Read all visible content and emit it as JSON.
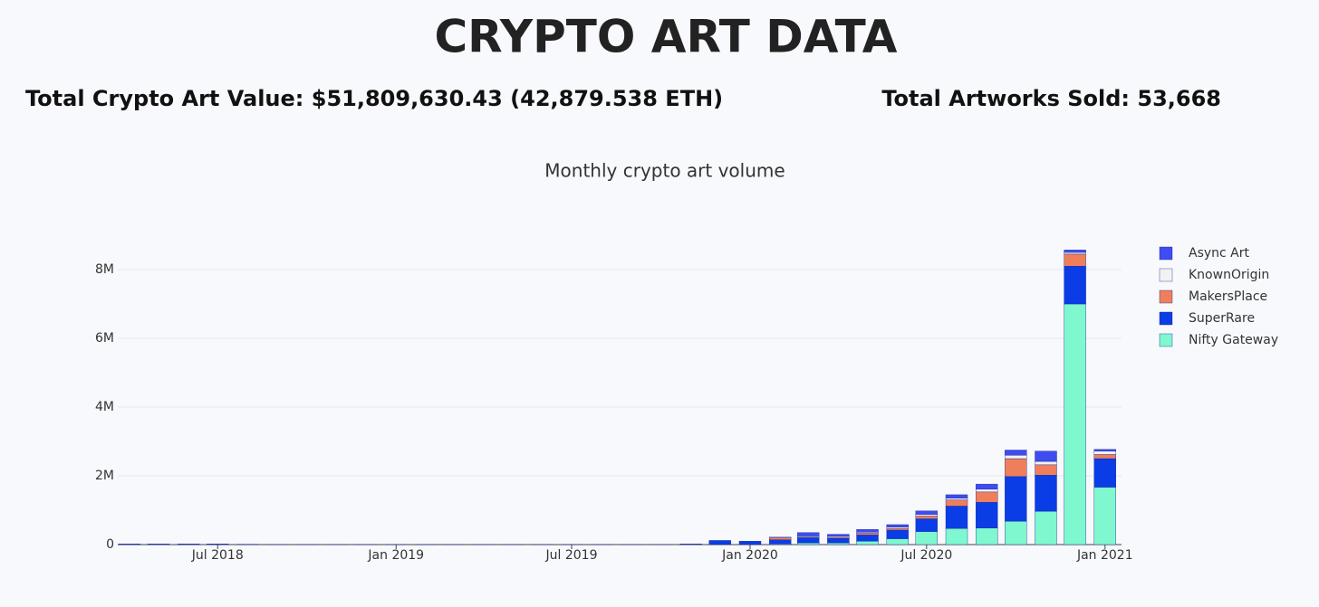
{
  "header": {
    "title": "CRYPTO ART DATA",
    "total_value": "Total Crypto Art Value: $51,809,630.43 (42,879.538 ETH)",
    "total_sold": "Total Artworks Sold: 53,668"
  },
  "chart_data": {
    "type": "bar",
    "stacked": true,
    "title": "Monthly crypto art volume",
    "x": [
      "2018-04",
      "2018-05",
      "2018-06",
      "2018-07",
      "2018-08",
      "2018-09",
      "2018-10",
      "2018-11",
      "2018-12",
      "2019-01",
      "2019-02",
      "2019-03",
      "2019-04",
      "2019-05",
      "2019-06",
      "2019-07",
      "2019-08",
      "2019-09",
      "2019-10",
      "2019-11",
      "2019-12",
      "2020-01",
      "2020-02",
      "2020-03",
      "2020-04",
      "2020-05",
      "2020-06",
      "2020-07",
      "2020-08",
      "2020-09",
      "2020-10",
      "2020-11",
      "2020-12",
      "2021-01"
    ],
    "series": [
      {
        "name": "Async Art",
        "color": "#3f4cf0",
        "values": [
          0,
          0,
          0,
          0,
          0,
          0,
          0,
          0,
          0,
          0,
          0,
          0,
          0,
          0,
          0,
          0,
          0,
          0,
          0,
          0,
          0,
          0,
          0,
          0.1,
          0.06,
          0.08,
          0.07,
          0.1,
          0.1,
          0.15,
          0.15,
          0.3,
          0.07,
          0.05
        ]
      },
      {
        "name": "KnownOrigin",
        "color": "#f2f2f2",
        "values": [
          0,
          0,
          0,
          0,
          0,
          0,
          0,
          0,
          0,
          0,
          0,
          0,
          0,
          0,
          0,
          0,
          0,
          0,
          0,
          0,
          0,
          0,
          0.02,
          0.03,
          0.03,
          0.03,
          0.04,
          0.05,
          0.05,
          0.08,
          0.1,
          0.1,
          0.05,
          0.1
        ]
      },
      {
        "name": "MakersPlace",
        "color": "#ef7f5a",
        "values": [
          0,
          0,
          0,
          0,
          0,
          0,
          0,
          0,
          0,
          0,
          0,
          0,
          0,
          0,
          0,
          0,
          0,
          0,
          0,
          0,
          0,
          0,
          0.06,
          0.02,
          0.03,
          0.05,
          0.05,
          0.08,
          0.18,
          0.3,
          0.52,
          0.3,
          0.35,
          0.12
        ]
      },
      {
        "name": "SuperRare",
        "color": "#0b3de6",
        "values": [
          0.02,
          0.02,
          0.02,
          0.02,
          0.01,
          0.005,
          0.005,
          0.005,
          0.005,
          0.005,
          0.005,
          0.005,
          0.005,
          0.005,
          0.005,
          0.005,
          0.005,
          0.005,
          0.005,
          0.02,
          0.12,
          0.1,
          0.12,
          0.15,
          0.13,
          0.18,
          0.25,
          0.37,
          0.65,
          0.75,
          1.3,
          1.05,
          1.1,
          0.83
        ]
      },
      {
        "name": "Nifty Gateway",
        "color": "#7ff7cf",
        "values": [
          0,
          0,
          0,
          0,
          0,
          0,
          0,
          0,
          0,
          0,
          0,
          0,
          0,
          0,
          0,
          0,
          0,
          0,
          0,
          0,
          0,
          0,
          0.02,
          0.05,
          0.05,
          0.1,
          0.17,
          0.38,
          0.47,
          0.48,
          0.68,
          0.97,
          7.0,
          1.67
        ]
      }
    ],
    "xlim": [
      "2018-03-20",
      "2021-01-18"
    ],
    "xticks": [
      {
        "value": "2018-07-01",
        "label": "Jul 2018"
      },
      {
        "value": "2019-01-01",
        "label": "Jan 2019"
      },
      {
        "value": "2019-07-01",
        "label": "Jul 2019"
      },
      {
        "value": "2020-01-01",
        "label": "Jan 2020"
      },
      {
        "value": "2020-07-01",
        "label": "Jul 2020"
      },
      {
        "value": "2021-01-01",
        "label": "Jan 2021"
      }
    ],
    "ylim": [
      0,
      9
    ],
    "yticks": [
      0,
      {
        "value": 2,
        "label": "2M"
      },
      {
        "value": 4,
        "label": "4M"
      },
      {
        "value": 6,
        "label": "6M"
      },
      {
        "value": 8,
        "label": "8M"
      }
    ],
    "grid": true,
    "legend": "right"
  }
}
